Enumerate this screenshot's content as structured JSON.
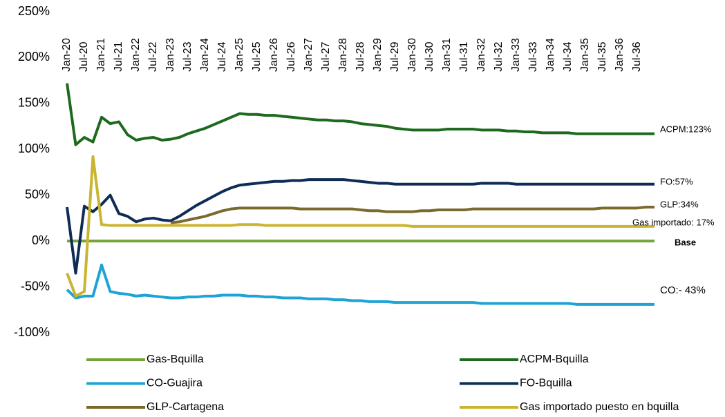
{
  "chart_data": {
    "type": "line",
    "categories": [
      "Jan-20",
      null,
      "Jul-20",
      null,
      "Jan-21",
      null,
      "Jul-21",
      null,
      "Jan-22",
      null,
      "Jul-22",
      null,
      "Jan-23",
      null,
      "Jul-23",
      null,
      "Jan-24",
      null,
      "Jul-24",
      null,
      "Jan-25",
      null,
      "Jul-25",
      null,
      "Jan-26",
      null,
      "Jul-26",
      null,
      "Jan-27",
      null,
      "Jul-27",
      null,
      "Jan-28",
      null,
      "Jul-28",
      null,
      "Jan-29",
      null,
      "Jul-29",
      null,
      "Jan-30",
      null,
      "Jul-30",
      null,
      "Jan-31",
      null,
      "Jul-31",
      null,
      "Jan-32",
      null,
      "Jul-32",
      null,
      "Jan-33",
      null,
      "Jul-33",
      null,
      "Jan-34",
      null,
      "Jul-34",
      null,
      "Jan-35",
      null,
      "Jul-35",
      null,
      "Jan-36",
      null,
      "Jul-36",
      null,
      null
    ],
    "series": [
      {
        "name": "Gas-Bquilla",
        "color": "#76a33a",
        "values": [
          0,
          0,
          0,
          0,
          0,
          0,
          0,
          0,
          0,
          0,
          0,
          0,
          0,
          0,
          0,
          0,
          0,
          0,
          0,
          0,
          0,
          0,
          0,
          0,
          0,
          0,
          0,
          0,
          0,
          0,
          0,
          0,
          0,
          0,
          0,
          0,
          0,
          0,
          0,
          0,
          0,
          0,
          0,
          0,
          0,
          0,
          0,
          0,
          0,
          0,
          0,
          0,
          0,
          0,
          0,
          0,
          0,
          0,
          0,
          0,
          0,
          0,
          0,
          0,
          0,
          0,
          0,
          0,
          0
        ]
      },
      {
        "name": "ACPM-Bquilla",
        "color": "#1d6a1f",
        "values": [
          172,
          105,
          113,
          108,
          135,
          128,
          130,
          116,
          110,
          112,
          113,
          110,
          111,
          113,
          117,
          120,
          123,
          127,
          131,
          135,
          139,
          138,
          138,
          137,
          137,
          136,
          135,
          134,
          133,
          132,
          132,
          131,
          131,
          130,
          128,
          127,
          126,
          125,
          123,
          122,
          121,
          121,
          121,
          121,
          122,
          122,
          122,
          122,
          121,
          121,
          121,
          120,
          120,
          119,
          119,
          118,
          118,
          118,
          118,
          117,
          117,
          117,
          117,
          117,
          117,
          117,
          117,
          117,
          117
        ]
      },
      {
        "name": "CO-Guajira",
        "color": "#1fa3d6",
        "values": [
          -53,
          -62,
          -60,
          -60,
          -26,
          -55,
          -57,
          -58,
          -60,
          -59,
          -60,
          -61,
          -62,
          -62,
          -61,
          -61,
          -60,
          -60,
          -59,
          -59,
          -59,
          -60,
          -60,
          -61,
          -61,
          -62,
          -62,
          -62,
          -63,
          -63,
          -63,
          -64,
          -64,
          -65,
          -65,
          -66,
          -66,
          -66,
          -67,
          -67,
          -67,
          -67,
          -67,
          -67,
          -67,
          -67,
          -67,
          -67,
          -68,
          -68,
          -68,
          -68,
          -68,
          -68,
          -68,
          -68,
          -68,
          -68,
          -68,
          -69,
          -69,
          -69,
          -69,
          -69,
          -69,
          -69,
          -69,
          -69,
          -69
        ]
      },
      {
        "name": "FO-Bquilla",
        "color": "#0e2c55",
        "values": [
          37,
          -35,
          38,
          32,
          40,
          50,
          30,
          27,
          21,
          24,
          25,
          23,
          22,
          27,
          33,
          39,
          44,
          49,
          54,
          58,
          61,
          62,
          63,
          64,
          65,
          65,
          66,
          66,
          67,
          67,
          67,
          67,
          67,
          66,
          65,
          64,
          63,
          63,
          62,
          62,
          62,
          62,
          62,
          62,
          62,
          62,
          62,
          62,
          63,
          63,
          63,
          63,
          62,
          62,
          62,
          62,
          62,
          62,
          62,
          62,
          62,
          62,
          62,
          62,
          62,
          62,
          62,
          62,
          62
        ]
      },
      {
        "name": "GLP-Cartagena",
        "color": "#7b6a2e",
        "values": [
          null,
          null,
          null,
          null,
          null,
          null,
          null,
          null,
          null,
          null,
          null,
          null,
          20,
          21,
          23,
          25,
          27,
          30,
          33,
          35,
          36,
          36,
          36,
          36,
          36,
          36,
          36,
          35,
          35,
          35,
          35,
          35,
          35,
          35,
          34,
          33,
          33,
          32,
          32,
          32,
          32,
          33,
          33,
          34,
          34,
          34,
          34,
          35,
          35,
          35,
          35,
          35,
          35,
          35,
          35,
          35,
          35,
          35,
          35,
          35,
          35,
          35,
          36,
          36,
          36,
          36,
          36,
          37,
          37
        ]
      },
      {
        "name": "Gas importado puesto en bquilla",
        "color": "#cbb431",
        "values": [
          -35,
          -60,
          -55,
          92,
          18,
          17,
          17,
          17,
          17,
          17,
          17,
          17,
          17,
          17,
          17,
          17,
          17,
          17,
          17,
          17,
          18,
          18,
          18,
          17,
          17,
          17,
          17,
          17,
          17,
          17,
          17,
          17,
          17,
          17,
          17,
          17,
          17,
          17,
          17,
          17,
          16,
          16,
          16,
          16,
          16,
          16,
          16,
          16,
          16,
          16,
          16,
          16,
          16,
          16,
          16,
          16,
          16,
          16,
          16,
          16,
          16,
          16,
          16,
          16,
          16,
          16,
          16,
          16,
          16
        ]
      }
    ],
    "ylim": [
      -100,
      250
    ],
    "yticks": [
      {
        "value": -100,
        "label": "-100%"
      },
      {
        "value": -50,
        "label": "-50%"
      },
      {
        "value": 0,
        "label": "0%"
      },
      {
        "value": 50,
        "label": "50%"
      },
      {
        "value": 100,
        "label": "100%"
      },
      {
        "value": 150,
        "label": "150%"
      },
      {
        "value": 200,
        "label": "200%"
      },
      {
        "value": 250,
        "label": "250%"
      }
    ],
    "grid": false,
    "legend": "bottom",
    "annotations": [
      "ACPM:123%",
      "FO:57%",
      "GLP:34%",
      "Gas importado: 17%",
      "Base",
      "CO:- 43%"
    ]
  }
}
